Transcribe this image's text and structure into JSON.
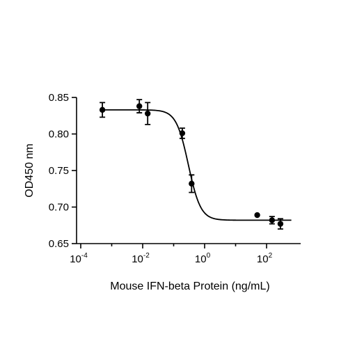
{
  "chart_data": {
    "type": "scatter",
    "xscale": "log",
    "xlabel": "Mouse IFN-beta Protein (ng/mL)",
    "ylabel": "OD450 nm",
    "xlim": [
      0.0001,
      1000
    ],
    "ylim": [
      0.65,
      0.85
    ],
    "grid": false,
    "x_ticks": [
      {
        "base": "10",
        "exp": "-4",
        "value": 0.0001
      },
      {
        "base": "10",
        "exp": "-2",
        "value": 0.01
      },
      {
        "base": "10",
        "exp": "0",
        "value": 1
      },
      {
        "base": "10",
        "exp": "2",
        "value": 100
      }
    ],
    "y_ticks": [
      {
        "label": "0.65",
        "value": 0.65
      },
      {
        "label": "0.70",
        "value": 0.7
      },
      {
        "label": "0.75",
        "value": 0.75
      },
      {
        "label": "0.80",
        "value": 0.8
      },
      {
        "label": "0.85",
        "value": 0.85
      }
    ],
    "series": [
      {
        "points": [
          {
            "x": 0.0005,
            "y": 0.833,
            "err": 0.01
          },
          {
            "x": 0.0078,
            "y": 0.838,
            "err": 0.009
          },
          {
            "x": 0.0145,
            "y": 0.828,
            "err": 0.015
          },
          {
            "x": 0.19,
            "y": 0.801,
            "err": 0.007
          },
          {
            "x": 0.38,
            "y": 0.732,
            "err": 0.012
          },
          {
            "x": 50,
            "y": 0.689,
            "err": 0
          },
          {
            "x": 150,
            "y": 0.682,
            "err": 0.005
          },
          {
            "x": 280,
            "y": 0.677,
            "err": 0.007
          }
        ],
        "fit": {
          "model": "4PL",
          "top": 0.833,
          "bottom": 0.682,
          "ec50": 0.3,
          "hill": 2.2
        }
      }
    ]
  }
}
